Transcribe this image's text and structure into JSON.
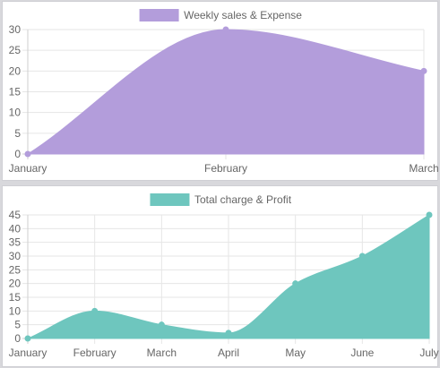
{
  "chart_data": [
    {
      "type": "area",
      "categories": [
        "January",
        "February",
        "March"
      ],
      "series": [
        {
          "name": "Weekly sales & Expense",
          "values": [
            0,
            30,
            20
          ],
          "color": "#b39ddb"
        }
      ],
      "ylim": [
        0,
        30
      ],
      "yticks": [
        0,
        5,
        10,
        15,
        20,
        25,
        30
      ],
      "grid": true,
      "legend": "top-center"
    },
    {
      "type": "area",
      "categories": [
        "January",
        "February",
        "March",
        "April",
        "May",
        "June",
        "July"
      ],
      "series": [
        {
          "name": "Total charge & Profit",
          "values": [
            0,
            10,
            5,
            2,
            20,
            30,
            45
          ],
          "color": "#6ec6be"
        }
      ],
      "ylim": [
        0,
        45
      ],
      "yticks": [
        0,
        5,
        10,
        15,
        20,
        25,
        30,
        35,
        40,
        45
      ],
      "grid": true,
      "legend": "top-center"
    }
  ]
}
